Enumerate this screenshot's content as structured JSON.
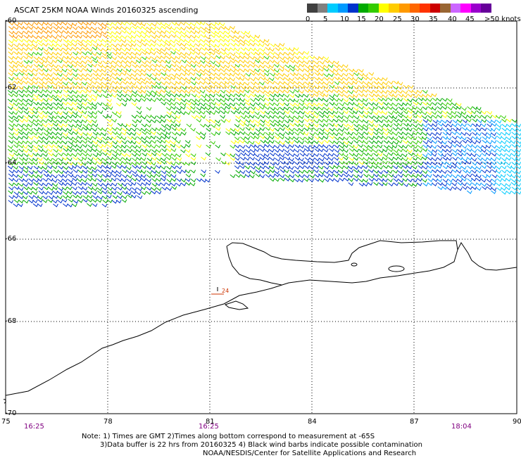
{
  "title": "ASCAT 25KM NOAA Winds 20160325 ascending",
  "legend": {
    "colors": [
      "#404040",
      "#808080",
      "#00ccff",
      "#0099ff",
      "#0033cc",
      "#00aa00",
      "#33cc00",
      "#ffff00",
      "#ffcc00",
      "#ff9900",
      "#ff6600",
      "#ff3300",
      "#cc0000",
      "#996633",
      "#cc66ff",
      "#ff00ff",
      "#9900cc",
      "#660099"
    ],
    "ticks": [
      "0",
      "5",
      "10",
      "15",
      "20",
      "25",
      "30",
      "35",
      "40",
      "45",
      ">50 knots"
    ]
  },
  "axes": {
    "lat_labels": [
      "-60",
      "-62",
      "-64",
      "-66",
      "-68",
      "-70"
    ],
    "lon_labels": [
      "75",
      "78",
      "81",
      "84",
      "87",
      "90"
    ],
    "times": [
      "16:25",
      "16:25",
      "18:04"
    ]
  },
  "notes": [
    "Note: 1) Times are GMT 2)Times along bottom correspond to measurement at -65S",
    "3)Data buffer is 22 hrs from 20160325 4) Black wind barbs indicate possible contamination",
    "NOAA/NESDIS/Center for Satellite Applications and Research"
  ],
  "marker": {
    "label": "24"
  },
  "chart_data": {
    "type": "wind barb map",
    "lat_range": [
      -70,
      -60
    ],
    "lon_range": [
      75,
      90
    ],
    "speed_bands_knots": [
      {
        "band": "0-5",
        "color": "#404040"
      },
      {
        "band": "5-10",
        "color": "#00ccff"
      },
      {
        "band": "10-15",
        "color": "#0033cc"
      },
      {
        "band": "15-20",
        "color": "#00aa00"
      },
      {
        "band": "20-25",
        "color": "#ffff00"
      },
      {
        "band": "25-30",
        "color": "#ff9900"
      },
      {
        "band": "30-35",
        "color": "#ff3300"
      }
    ]
  }
}
